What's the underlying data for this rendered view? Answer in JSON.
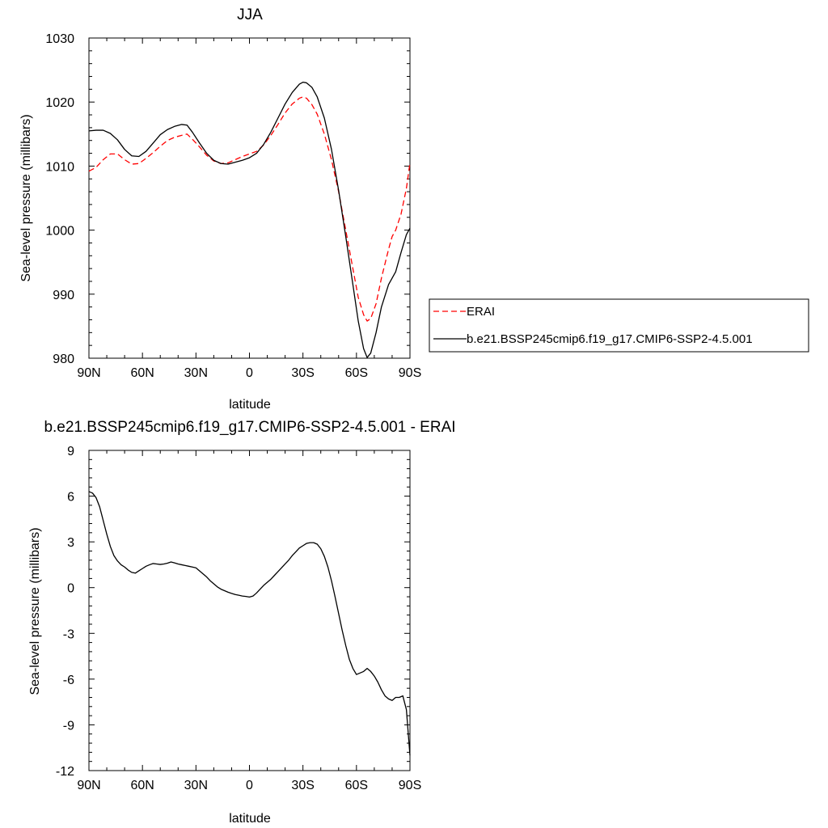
{
  "chart_data": [
    {
      "type": "line",
      "title": "JJA",
      "xlabel": "latitude",
      "ylabel": "Sea-level pressure (millibars)",
      "xlim": [
        90,
        -90
      ],
      "ylim": [
        980,
        1030
      ],
      "x_ticks": [
        90,
        60,
        30,
        0,
        -30,
        -60,
        -90
      ],
      "x_tick_labels": [
        "90N",
        "60N",
        "30N",
        "0",
        "30S",
        "60S",
        "90S"
      ],
      "y_ticks": [
        980,
        990,
        1000,
        1010,
        1020,
        1030
      ],
      "y_tick_labels": [
        "980",
        "990",
        "1000",
        "1010",
        "1020",
        "1030"
      ],
      "grid": false,
      "legend_placement": "right",
      "series": [
        {
          "name": "ERAI",
          "color": "#ff0000",
          "dash": "dashed",
          "points": [
            [
              90,
              1009.2
            ],
            [
              86,
              1009.8
            ],
            [
              82,
              1011.0
            ],
            [
              78,
              1011.9
            ],
            [
              74,
              1011.9
            ],
            [
              70,
              1011.0
            ],
            [
              66,
              1010.3
            ],
            [
              62,
              1010.4
            ],
            [
              58,
              1011.2
            ],
            [
              54,
              1012.1
            ],
            [
              50,
              1013.1
            ],
            [
              46,
              1014.0
            ],
            [
              42,
              1014.5
            ],
            [
              38,
              1014.8
            ],
            [
              35,
              1015.0
            ],
            [
              32,
              1014.2
            ],
            [
              28,
              1013.0
            ],
            [
              24,
              1011.7
            ],
            [
              20,
              1010.8
            ],
            [
              16,
              1010.4
            ],
            [
              12,
              1010.5
            ],
            [
              8,
              1011.0
            ],
            [
              4,
              1011.5
            ],
            [
              0,
              1011.9
            ],
            [
              -4,
              1012.3
            ],
            [
              -8,
              1013.3
            ],
            [
              -12,
              1014.8
            ],
            [
              -16,
              1016.5
            ],
            [
              -20,
              1018.3
            ],
            [
              -24,
              1019.7
            ],
            [
              -28,
              1020.6
            ],
            [
              -30,
              1020.8
            ],
            [
              -32,
              1020.6
            ],
            [
              -35,
              1019.6
            ],
            [
              -38,
              1018.1
            ],
            [
              -42,
              1015.0
            ],
            [
              -46,
              1011.0
            ],
            [
              -50,
              1006.0
            ],
            [
              -54,
              1000.0
            ],
            [
              -58,
              994.0
            ],
            [
              -61,
              989.5
            ],
            [
              -64,
              986.8
            ],
            [
              -66,
              985.8
            ],
            [
              -68,
              986.2
            ],
            [
              -71,
              988.5
            ],
            [
              -74,
              992.5
            ],
            [
              -78,
              997.0
            ],
            [
              -80,
              999.0
            ],
            [
              -82,
              1000.0
            ],
            [
              -85,
              1002.5
            ],
            [
              -88,
              1006.5
            ],
            [
              -90,
              1010.5
            ]
          ]
        },
        {
          "name": "b.e21.BSSP245cmip6.f19_g17.CMIP6-SSP2-4.5.001",
          "color": "#000000",
          "dash": "solid",
          "points": [
            [
              90,
              1015.5
            ],
            [
              86,
              1015.6
            ],
            [
              82,
              1015.6
            ],
            [
              78,
              1015.1
            ],
            [
              74,
              1014.1
            ],
            [
              70,
              1012.6
            ],
            [
              66,
              1011.6
            ],
            [
              62,
              1011.5
            ],
            [
              58,
              1012.3
            ],
            [
              54,
              1013.6
            ],
            [
              50,
              1014.9
            ],
            [
              46,
              1015.7
            ],
            [
              42,
              1016.2
            ],
            [
              38,
              1016.5
            ],
            [
              35,
              1016.4
            ],
            [
              32,
              1015.3
            ],
            [
              28,
              1013.6
            ],
            [
              24,
              1012.0
            ],
            [
              20,
              1010.9
            ],
            [
              16,
              1010.4
            ],
            [
              12,
              1010.3
            ],
            [
              8,
              1010.6
            ],
            [
              4,
              1010.9
            ],
            [
              0,
              1011.3
            ],
            [
              -4,
              1012.0
            ],
            [
              -8,
              1013.4
            ],
            [
              -12,
              1015.3
            ],
            [
              -16,
              1017.5
            ],
            [
              -20,
              1019.7
            ],
            [
              -24,
              1021.5
            ],
            [
              -28,
              1022.8
            ],
            [
              -30,
              1023.1
            ],
            [
              -32,
              1023.0
            ],
            [
              -35,
              1022.3
            ],
            [
              -38,
              1020.8
            ],
            [
              -42,
              1017.5
            ],
            [
              -46,
              1012.6
            ],
            [
              -50,
              1006.2
            ],
            [
              -54,
              999.0
            ],
            [
              -58,
              991.5
            ],
            [
              -61,
              985.8
            ],
            [
              -64,
              981.5
            ],
            [
              -66,
              980.1
            ],
            [
              -68,
              980.8
            ],
            [
              -71,
              984.0
            ],
            [
              -74,
              988.0
            ],
            [
              -78,
              991.5
            ],
            [
              -82,
              993.5
            ],
            [
              -85,
              996.5
            ],
            [
              -88,
              999.3
            ],
            [
              -90,
              1000.3
            ]
          ]
        }
      ]
    },
    {
      "type": "line",
      "title": "b.e21.BSSP245cmip6.f19_g17.CMIP6-SSP2-4.5.001 - ERAI",
      "xlabel": "latitude",
      "ylabel": "Sea-level pressure (millibars)",
      "xlim": [
        90,
        -90
      ],
      "ylim": [
        -12,
        9
      ],
      "x_ticks": [
        90,
        60,
        30,
        0,
        -30,
        -60,
        -90
      ],
      "x_tick_labels": [
        "90N",
        "60N",
        "30N",
        "0",
        "30S",
        "60S",
        "90S"
      ],
      "y_ticks": [
        -12,
        -9,
        -6,
        -3,
        0,
        3,
        6,
        9
      ],
      "y_tick_labels": [
        "-12",
        "-9",
        "-6",
        "-3",
        "0",
        "3",
        "6",
        "9"
      ],
      "grid": false,
      "series": [
        {
          "color": "#000000",
          "dash": "solid",
          "points": [
            [
              90,
              6.3
            ],
            [
              88,
              6.2
            ],
            [
              86,
              5.9
            ],
            [
              84,
              5.3
            ],
            [
              82,
              4.4
            ],
            [
              80,
              3.5
            ],
            [
              78,
              2.7
            ],
            [
              76,
              2.1
            ],
            [
              74,
              1.75
            ],
            [
              72,
              1.5
            ],
            [
              70,
              1.35
            ],
            [
              68,
              1.15
            ],
            [
              66,
              1.0
            ],
            [
              64,
              0.95
            ],
            [
              62,
              1.1
            ],
            [
              60,
              1.25
            ],
            [
              58,
              1.4
            ],
            [
              56,
              1.5
            ],
            [
              54,
              1.58
            ],
            [
              52,
              1.55
            ],
            [
              50,
              1.52
            ],
            [
              48,
              1.55
            ],
            [
              46,
              1.6
            ],
            [
              44,
              1.68
            ],
            [
              42,
              1.62
            ],
            [
              40,
              1.55
            ],
            [
              38,
              1.5
            ],
            [
              36,
              1.45
            ],
            [
              34,
              1.4
            ],
            [
              32,
              1.35
            ],
            [
              30,
              1.3
            ],
            [
              28,
              1.1
            ],
            [
              26,
              0.9
            ],
            [
              24,
              0.7
            ],
            [
              22,
              0.45
            ],
            [
              20,
              0.25
            ],
            [
              18,
              0.05
            ],
            [
              16,
              -0.1
            ],
            [
              14,
              -0.2
            ],
            [
              12,
              -0.3
            ],
            [
              10,
              -0.38
            ],
            [
              8,
              -0.45
            ],
            [
              6,
              -0.5
            ],
            [
              4,
              -0.55
            ],
            [
              2,
              -0.58
            ],
            [
              0,
              -0.62
            ],
            [
              -2,
              -0.55
            ],
            [
              -4,
              -0.35
            ],
            [
              -6,
              -0.1
            ],
            [
              -8,
              0.15
            ],
            [
              -10,
              0.35
            ],
            [
              -12,
              0.55
            ],
            [
              -14,
              0.8
            ],
            [
              -16,
              1.05
            ],
            [
              -18,
              1.3
            ],
            [
              -20,
              1.55
            ],
            [
              -22,
              1.8
            ],
            [
              -24,
              2.1
            ],
            [
              -26,
              2.35
            ],
            [
              -28,
              2.6
            ],
            [
              -30,
              2.75
            ],
            [
              -32,
              2.9
            ],
            [
              -34,
              2.95
            ],
            [
              -36,
              2.95
            ],
            [
              -38,
              2.85
            ],
            [
              -40,
              2.55
            ],
            [
              -42,
              2.05
            ],
            [
              -44,
              1.35
            ],
            [
              -46,
              0.45
            ],
            [
              -48,
              -0.6
            ],
            [
              -50,
              -1.7
            ],
            [
              -52,
              -2.8
            ],
            [
              -54,
              -3.8
            ],
            [
              -56,
              -4.7
            ],
            [
              -58,
              -5.3
            ],
            [
              -60,
              -5.7
            ],
            [
              -62,
              -5.6
            ],
            [
              -64,
              -5.5
            ],
            [
              -66,
              -5.3
            ],
            [
              -68,
              -5.5
            ],
            [
              -70,
              -5.8
            ],
            [
              -72,
              -6.2
            ],
            [
              -74,
              -6.7
            ],
            [
              -76,
              -7.1
            ],
            [
              -78,
              -7.3
            ],
            [
              -80,
              -7.4
            ],
            [
              -82,
              -7.2
            ],
            [
              -84,
              -7.2
            ],
            [
              -86,
              -7.1
            ],
            [
              -88,
              -8.0
            ],
            [
              -89,
              -9.5
            ],
            [
              -90,
              -11.0
            ]
          ]
        }
      ]
    }
  ]
}
